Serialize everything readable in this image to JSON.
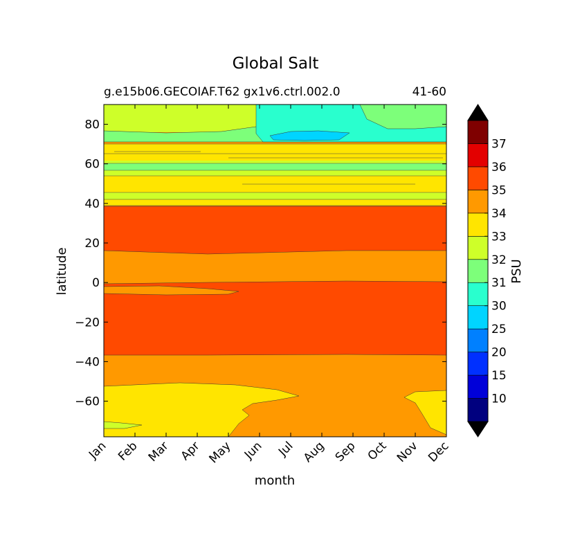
{
  "chart_data": {
    "type": "heatmap",
    "title": "Global Salt",
    "subtitle_left": "g.e15b06.GECOIAF.T62 gx1v6.ctrl.002.0",
    "subtitle_right": "41-60",
    "xlabel": "month",
    "ylabel": "latitude",
    "x_categories": [
      "Jan",
      "Feb",
      "Mar",
      "Apr",
      "May",
      "Jun",
      "Jul",
      "Aug",
      "Sep",
      "Oct",
      "Nov",
      "Dec"
    ],
    "ylim": [
      -78,
      90
    ],
    "y_ticks": [
      80,
      60,
      40,
      20,
      0,
      -20,
      -40,
      -60
    ],
    "y_tick_labels": [
      "80",
      "60",
      "40",
      "20",
      "0",
      "−20",
      "−40",
      "−60"
    ],
    "grid": false,
    "colorbar": {
      "label": "PSU",
      "tick_labels": [
        "10",
        "15",
        "20",
        "25",
        "30",
        "31",
        "32",
        "33",
        "34",
        "35",
        "36",
        "37"
      ],
      "levels": [
        5,
        10,
        15,
        20,
        25,
        30,
        31,
        32,
        33,
        34,
        35,
        36,
        37,
        38
      ],
      "colors": [
        "#00007f",
        "#0000d9",
        "#0030ff",
        "#0080ff",
        "#00d4ff",
        "#29ffce",
        "#7dff7a",
        "#ceff29",
        "#ffe500",
        "#ff9900",
        "#ff4a00",
        "#e30000",
        "#7f0000"
      ],
      "under_color": "#000000",
      "over_color": "#000000",
      "extend": "both"
    },
    "bands": [
      {
        "lat": [
          40,
          90
        ],
        "level_range": "31-33",
        "description_color": "#ceff29"
      },
      {
        "lat": [
          16,
          39
        ],
        "value_range": "35-36",
        "color": "#ff4a00"
      },
      {
        "lat": [
          0,
          16
        ],
        "value_range": "34-35",
        "color": "#ff9900"
      },
      {
        "lat": [
          -38,
          0
        ],
        "value_range": "35-36",
        "color": "#ff4a00"
      },
      {
        "lat": [
          -55,
          -38
        ],
        "value_range": "34-35",
        "color": "#ff9900"
      },
      {
        "lat": [
          -78,
          -55
        ],
        "value_range": "33-34",
        "color": "#ffe500"
      }
    ]
  }
}
